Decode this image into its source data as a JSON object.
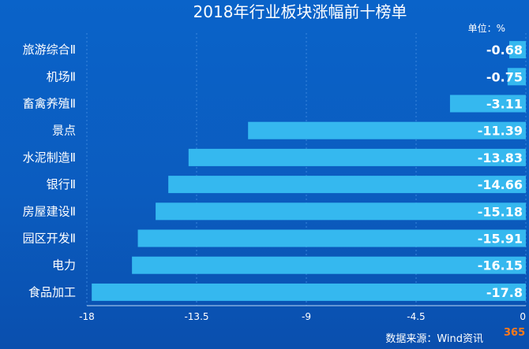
{
  "chart_data": {
    "type": "bar",
    "orientation": "horizontal",
    "title": "2018年行业板块涨幅前十榜单",
    "unit_label": "单位：%",
    "source": "数据来源：Wind资讯",
    "categories": [
      "旅游综合Ⅱ",
      "机场Ⅱ",
      "畜禽养殖Ⅱ",
      "景点",
      "水泥制造Ⅱ",
      "银行Ⅱ",
      "房屋建设Ⅱ",
      "园区开发Ⅱ",
      "电力",
      "食品加工"
    ],
    "values": [
      -0.68,
      -0.75,
      -3.11,
      -11.39,
      -13.83,
      -14.66,
      -15.18,
      -15.91,
      -16.15,
      -17.8
    ],
    "value_labels": [
      "-0.68",
      "-0.75",
      "-3.11",
      "-11.39",
      "-13.83",
      "-14.66",
      "-15.18",
      "-15.91",
      "-16.15",
      "-17.8"
    ],
    "xlim": [
      -18,
      0
    ],
    "xticks": [
      -18,
      -13.5,
      -9,
      -4.5,
      0
    ],
    "xtick_labels": [
      "-18",
      "-13.5",
      "-9",
      "-4.5",
      "0"
    ],
    "grid": true,
    "colors": {
      "bar": "#35b8ef",
      "background": "#0b5cbf"
    }
  },
  "watermark": "365"
}
